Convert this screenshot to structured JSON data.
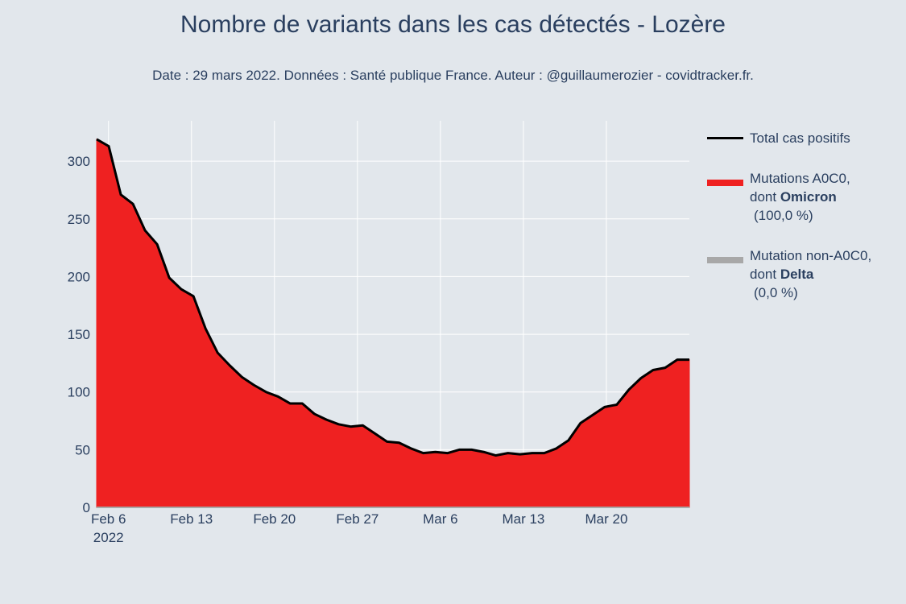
{
  "title": "Nombre de variants dans les cas détectés - Lozère",
  "subtitle": "Date : 29 mars 2022. Données : Santé publique France. Auteur : @guillaumerozier - covidtracker.fr.",
  "legend": {
    "total": {
      "label": "Total cas positifs",
      "color": "#000000"
    },
    "omicron": {
      "line1": "Mutations A0C0,",
      "line2_prefix": "dont ",
      "line2_bold": "Omicron",
      "detail": "(100,0 %)",
      "color": "#ef2121"
    },
    "delta": {
      "line1": "Mutation non-A0C0,",
      "line2_prefix": "dont ",
      "line2_bold": "Delta",
      "detail": "(0,0 %)",
      "color": "#a8a8a8"
    }
  },
  "chart_data": {
    "type": "area",
    "x_start": "2022-02-05",
    "x_end": "2022-03-27",
    "ylim": [
      0,
      335
    ],
    "y_ticks": [
      0,
      50,
      100,
      150,
      200,
      250,
      300
    ],
    "x_ticks": [
      {
        "date": "2022-02-06",
        "label": "Feb 6",
        "sublabel": "2022"
      },
      {
        "date": "2022-02-13",
        "label": "Feb 13"
      },
      {
        "date": "2022-02-20",
        "label": "Feb 20"
      },
      {
        "date": "2022-02-27",
        "label": "Feb 27"
      },
      {
        "date": "2022-03-06",
        "label": "Mar 6"
      },
      {
        "date": "2022-03-13",
        "label": "Mar 13"
      },
      {
        "date": "2022-03-20",
        "label": "Mar 20"
      }
    ],
    "series": [
      {
        "name": "Total cas positifs",
        "type": "line",
        "color": "#000000",
        "y": [
          319,
          313,
          271,
          263,
          240,
          228,
          199,
          189,
          183,
          155,
          134,
          123,
          113,
          106,
          100,
          96,
          90,
          90,
          81,
          76,
          72,
          70,
          71,
          64,
          57,
          56,
          51,
          47,
          48,
          47,
          50,
          50,
          48,
          45,
          47,
          46,
          47,
          47,
          51,
          58,
          73,
          80,
          87,
          89,
          102,
          112,
          119,
          121,
          128,
          128
        ]
      },
      {
        "name": "Mutations A0C0, dont Omicron",
        "type": "area",
        "color": "#ef2121",
        "y": [
          319,
          313,
          271,
          263,
          240,
          228,
          199,
          189,
          183,
          155,
          134,
          123,
          113,
          106,
          100,
          96,
          90,
          90,
          81,
          76,
          72,
          70,
          71,
          64,
          57,
          56,
          51,
          47,
          48,
          47,
          50,
          50,
          48,
          45,
          47,
          46,
          47,
          47,
          51,
          58,
          73,
          80,
          87,
          89,
          102,
          112,
          119,
          121,
          128,
          128
        ]
      },
      {
        "name": "Mutation non-A0C0, dont Delta",
        "type": "area",
        "color": "#a8a8a8",
        "y": [
          0,
          0,
          0,
          0,
          0,
          0,
          0,
          0,
          0,
          0,
          0,
          0,
          0,
          0,
          0,
          0,
          0,
          0,
          0,
          0,
          0,
          0,
          0,
          0,
          0,
          0,
          0,
          0,
          0,
          0,
          0,
          0,
          0,
          0,
          0,
          0,
          0,
          0,
          0,
          0,
          0,
          0,
          0,
          0,
          0,
          0,
          0,
          0,
          0,
          0
        ]
      }
    ]
  }
}
